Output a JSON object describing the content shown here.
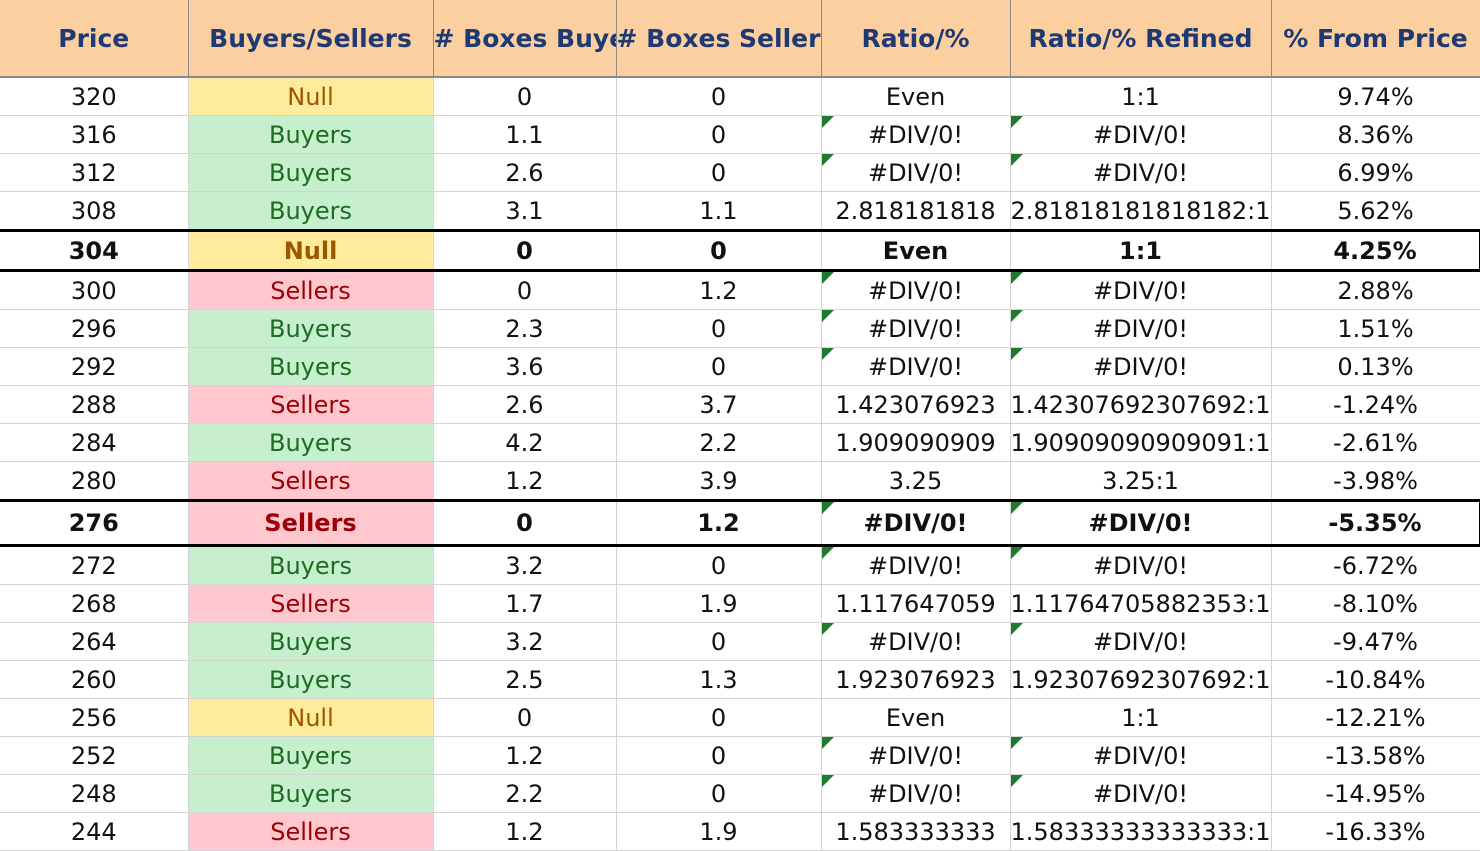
{
  "columns": [
    "Price",
    "Buyers/Sellers",
    "# Boxes Buyers",
    "# Boxes Sellers",
    "Ratio/%",
    "Ratio/% Refined",
    "% From Price"
  ],
  "colors": {
    "header_bg": "#fccfa0",
    "header_text": "#1f3a73",
    "buyers_bg": "#c6efce",
    "buyers_text": "#1e6b23",
    "sellers_bg": "#ffc7ce",
    "sellers_text": "#9c0006",
    "null_bg": "#ffeb9c",
    "null_text": "#9c5700",
    "error_triangle": "#1f7a2e"
  },
  "rows": [
    {
      "price": "320",
      "side": "Null",
      "buyers": "0",
      "sellers": "0",
      "ratio": "Even",
      "refined": "1:1",
      "from_price": "9.74%",
      "highlight": false
    },
    {
      "price": "316",
      "side": "Buyers",
      "buyers": "1.1",
      "sellers": "0",
      "ratio": "#DIV/0!",
      "refined": "#DIV/0!",
      "from_price": "8.36%",
      "highlight": false
    },
    {
      "price": "312",
      "side": "Buyers",
      "buyers": "2.6",
      "sellers": "0",
      "ratio": "#DIV/0!",
      "refined": "#DIV/0!",
      "from_price": "6.99%",
      "highlight": false
    },
    {
      "price": "308",
      "side": "Buyers",
      "buyers": "3.1",
      "sellers": "1.1",
      "ratio": "2.818181818",
      "refined": "2.81818181818182:1",
      "from_price": "5.62%",
      "highlight": false
    },
    {
      "price": "304",
      "side": "Null",
      "buyers": "0",
      "sellers": "0",
      "ratio": "Even",
      "refined": "1:1",
      "from_price": "4.25%",
      "highlight": true
    },
    {
      "price": "300",
      "side": "Sellers",
      "buyers": "0",
      "sellers": "1.2",
      "ratio": "#DIV/0!",
      "refined": "#DIV/0!",
      "from_price": "2.88%",
      "highlight": false
    },
    {
      "price": "296",
      "side": "Buyers",
      "buyers": "2.3",
      "sellers": "0",
      "ratio": "#DIV/0!",
      "refined": "#DIV/0!",
      "from_price": "1.51%",
      "highlight": false
    },
    {
      "price": "292",
      "side": "Buyers",
      "buyers": "3.6",
      "sellers": "0",
      "ratio": "#DIV/0!",
      "refined": "#DIV/0!",
      "from_price": "0.13%",
      "highlight": false
    },
    {
      "price": "288",
      "side": "Sellers",
      "buyers": "2.6",
      "sellers": "3.7",
      "ratio": "1.423076923",
      "refined": "1.42307692307692:1",
      "from_price": "-1.24%",
      "highlight": false
    },
    {
      "price": "284",
      "side": "Buyers",
      "buyers": "4.2",
      "sellers": "2.2",
      "ratio": "1.909090909",
      "refined": "1.90909090909091:1",
      "from_price": "-2.61%",
      "highlight": false
    },
    {
      "price": "280",
      "side": "Sellers",
      "buyers": "1.2",
      "sellers": "3.9",
      "ratio": "3.25",
      "refined": "3.25:1",
      "from_price": "-3.98%",
      "highlight": false
    },
    {
      "price": "276",
      "side": "Sellers",
      "buyers": "0",
      "sellers": "1.2",
      "ratio": "#DIV/0!",
      "refined": "#DIV/0!",
      "from_price": "-5.35%",
      "highlight": true
    },
    {
      "price": "272",
      "side": "Buyers",
      "buyers": "3.2",
      "sellers": "0",
      "ratio": "#DIV/0!",
      "refined": "#DIV/0!",
      "from_price": "-6.72%",
      "highlight": false
    },
    {
      "price": "268",
      "side": "Sellers",
      "buyers": "1.7",
      "sellers": "1.9",
      "ratio": "1.117647059",
      "refined": "1.11764705882353:1",
      "from_price": "-8.10%",
      "highlight": false
    },
    {
      "price": "264",
      "side": "Buyers",
      "buyers": "3.2",
      "sellers": "0",
      "ratio": "#DIV/0!",
      "refined": "#DIV/0!",
      "from_price": "-9.47%",
      "highlight": false
    },
    {
      "price": "260",
      "side": "Buyers",
      "buyers": "2.5",
      "sellers": "1.3",
      "ratio": "1.923076923",
      "refined": "1.92307692307692:1",
      "from_price": "-10.84%",
      "highlight": false
    },
    {
      "price": "256",
      "side": "Null",
      "buyers": "0",
      "sellers": "0",
      "ratio": "Even",
      "refined": "1:1",
      "from_price": "-12.21%",
      "highlight": false
    },
    {
      "price": "252",
      "side": "Buyers",
      "buyers": "1.2",
      "sellers": "0",
      "ratio": "#DIV/0!",
      "refined": "#DIV/0!",
      "from_price": "-13.58%",
      "highlight": false
    },
    {
      "price": "248",
      "side": "Buyers",
      "buyers": "2.2",
      "sellers": "0",
      "ratio": "#DIV/0!",
      "refined": "#DIV/0!",
      "from_price": "-14.95%",
      "highlight": false
    },
    {
      "price": "244",
      "side": "Sellers",
      "buyers": "1.2",
      "sellers": "1.9",
      "ratio": "1.583333333",
      "refined": "1.58333333333333:1",
      "from_price": "-16.33%",
      "highlight": false
    }
  ]
}
